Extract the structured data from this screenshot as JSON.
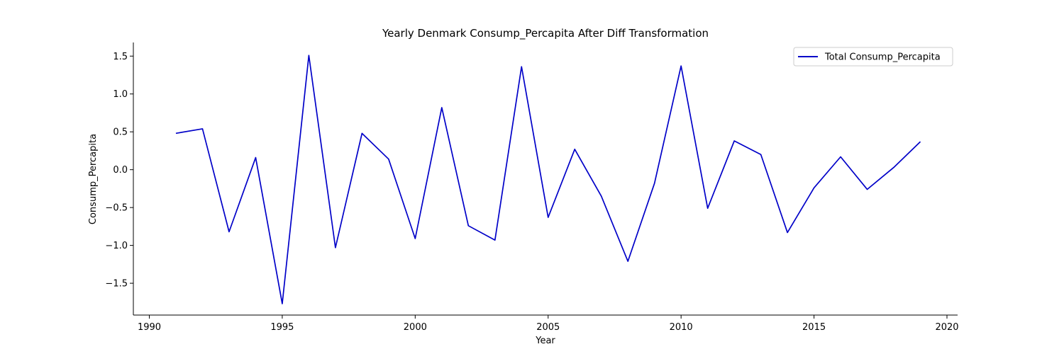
{
  "chart_data": {
    "type": "line",
    "title": "Yearly Denmark Consump_Percapita After Diff Transformation",
    "xlabel": "Year",
    "ylabel": "Consump_Percapita",
    "xlim": [
      1989.4,
      2020.4
    ],
    "ylim": [
      -1.92,
      1.68
    ],
    "x_ticks": [
      1990,
      1995,
      2000,
      2005,
      2010,
      2015,
      2020
    ],
    "y_ticks": [
      -1.5,
      -1.0,
      -0.5,
      0.0,
      0.5,
      1.0,
      1.5
    ],
    "x_tick_labels": [
      "1990",
      "1995",
      "2000",
      "2005",
      "2010",
      "2015",
      "2020"
    ],
    "y_tick_labels": [
      "−1.5",
      "−1.0",
      "−0.5",
      "0.0",
      "0.5",
      "1.0",
      "1.5"
    ],
    "grid": false,
    "legend_position": "top-right",
    "series": [
      {
        "name": "Total Consump_Percapita",
        "color": "#0000c8",
        "x": [
          1991,
          1992,
          1993,
          1994,
          1995,
          1996,
          1997,
          1998,
          1999,
          2000,
          2001,
          2002,
          2003,
          2004,
          2005,
          2006,
          2007,
          2008,
          2009,
          2010,
          2011,
          2012,
          2013,
          2014,
          2015,
          2016,
          2017,
          2018,
          2019
        ],
        "y": [
          0.48,
          0.54,
          -0.82,
          0.16,
          -1.77,
          1.51,
          -1.03,
          0.48,
          0.14,
          -0.91,
          0.82,
          -0.74,
          -0.93,
          1.36,
          -0.63,
          0.27,
          -0.35,
          -1.21,
          -0.18,
          1.37,
          -0.51,
          0.38,
          0.2,
          -0.83,
          -0.24,
          0.17,
          -0.26,
          0.03,
          0.37
        ]
      }
    ]
  }
}
